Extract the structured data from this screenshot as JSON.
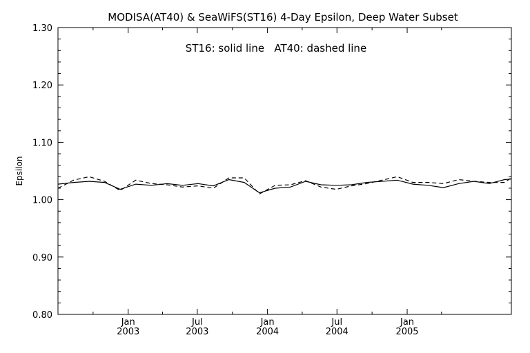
{
  "chart_data": {
    "type": "line",
    "title": "MODISA(AT40) & SeaWiFS(ST16) 4-Day Epsilon, Deep Water Subset",
    "annotation": "ST16: solid line   AT40: dashed line",
    "xlabel": "",
    "ylabel": "Epsilon",
    "xlim": [
      "2002-07-01",
      "2005-10-01"
    ],
    "ylim": [
      0.8,
      1.3
    ],
    "grid": false,
    "y_ticks": [
      {
        "value": 0.8,
        "label": "0.80"
      },
      {
        "value": 0.9,
        "label": "0.90"
      },
      {
        "value": 1.0,
        "label": "1.00"
      },
      {
        "value": 1.1,
        "label": "1.10"
      },
      {
        "value": 1.2,
        "label": "1.20"
      },
      {
        "value": 1.3,
        "label": "1.30"
      }
    ],
    "x_ticks": [
      {
        "date": "2003-01-01",
        "month": "Jan",
        "year": "2003"
      },
      {
        "date": "2003-07-01",
        "month": "Jul",
        "year": "2003"
      },
      {
        "date": "2004-01-01",
        "month": "Jan",
        "year": "2004"
      },
      {
        "date": "2004-07-01",
        "month": "Jul",
        "year": "2004"
      },
      {
        "date": "2005-01-01",
        "month": "Jan",
        "year": "2005"
      }
    ],
    "x": [
      "2002-07-01",
      "2002-08-11",
      "2002-09-21",
      "2002-10-31",
      "2002-12-11",
      "2003-01-21",
      "2003-03-03",
      "2003-04-13",
      "2003-05-23",
      "2003-07-03",
      "2003-08-12",
      "2003-09-22",
      "2003-11-01",
      "2003-12-11",
      "2004-01-21",
      "2004-03-01",
      "2004-04-10",
      "2004-05-20",
      "2004-06-29",
      "2004-08-08",
      "2004-09-17",
      "2004-10-27",
      "2004-12-06",
      "2005-01-16",
      "2005-02-25",
      "2005-04-06",
      "2005-05-16",
      "2005-06-25",
      "2005-08-04",
      "2005-09-13",
      "2005-10-01"
    ],
    "series": [
      {
        "name": "ST16",
        "style": "solid",
        "values": [
          1.027,
          1.03,
          1.032,
          1.03,
          1.018,
          1.027,
          1.025,
          1.028,
          1.025,
          1.028,
          1.024,
          1.035,
          1.03,
          1.012,
          1.02,
          1.022,
          1.032,
          1.026,
          1.025,
          1.026,
          1.03,
          1.032,
          1.034,
          1.027,
          1.025,
          1.021,
          1.028,
          1.032,
          1.028,
          1.035,
          1.036
        ]
      },
      {
        "name": "AT40",
        "style": "dashed",
        "values": [
          1.02,
          1.034,
          1.04,
          1.032,
          1.016,
          1.034,
          1.028,
          1.026,
          1.022,
          1.024,
          1.02,
          1.038,
          1.038,
          1.01,
          1.025,
          1.026,
          1.033,
          1.022,
          1.018,
          1.024,
          1.028,
          1.034,
          1.04,
          1.03,
          1.03,
          1.028,
          1.035,
          1.032,
          1.03,
          1.03,
          1.038
        ]
      }
    ]
  }
}
